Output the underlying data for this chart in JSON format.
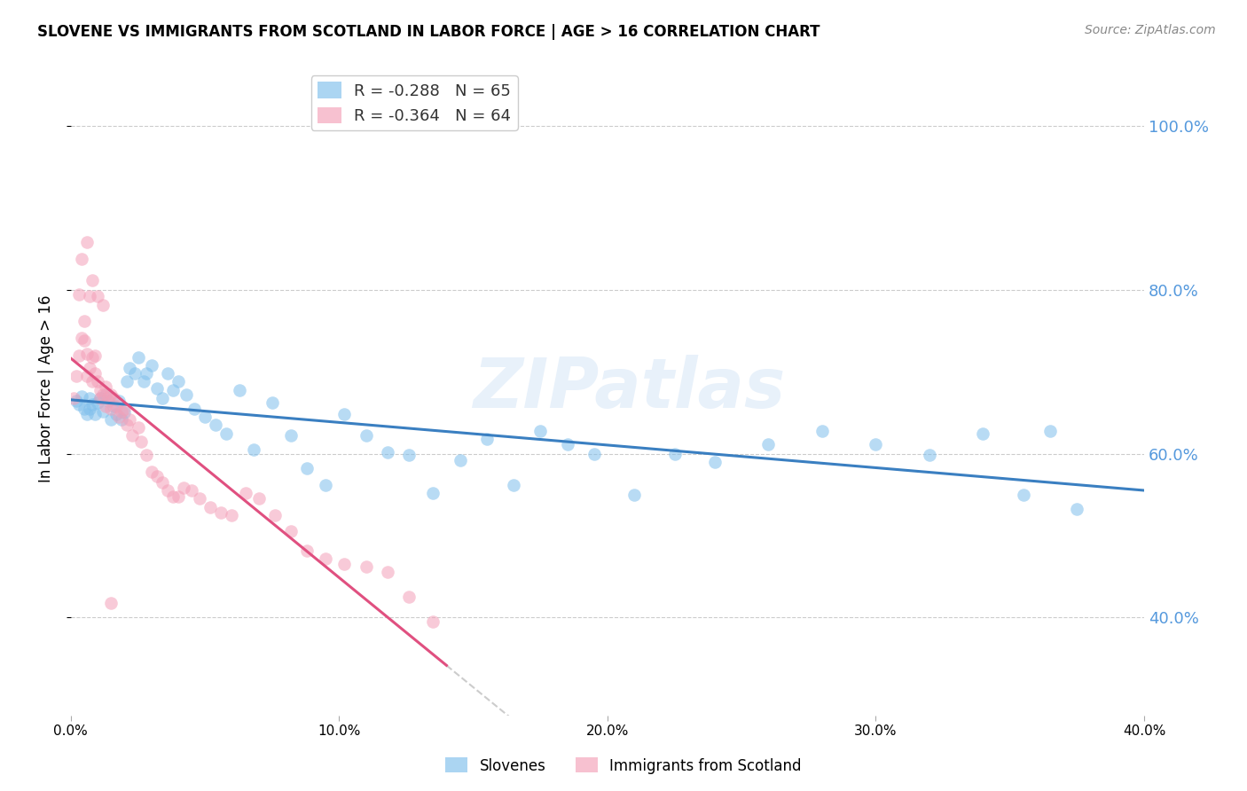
{
  "title": "SLOVENE VS IMMIGRANTS FROM SCOTLAND IN LABOR FORCE | AGE > 16 CORRELATION CHART",
  "source": "Source: ZipAtlas.com",
  "ylabel": "In Labor Force | Age > 16",
  "xlim": [
    0.0,
    0.4
  ],
  "ylim": [
    0.28,
    1.08
  ],
  "ytick_vals": [
    0.4,
    0.6,
    0.8,
    1.0
  ],
  "ytick_labels": [
    "40.0%",
    "60.0%",
    "80.0%",
    "100.0%"
  ],
  "xtick_vals": [
    0.0,
    0.1,
    0.2,
    0.3,
    0.4
  ],
  "xtick_labels": [
    "0.0%",
    "10.0%",
    "20.0%",
    "30.0%",
    "40.0%"
  ],
  "color_blue": "#7fbfec",
  "color_pink": "#f4a0b8",
  "line_blue": "#3a7fc1",
  "line_pink": "#e05080",
  "line_gray": "#cccccc",
  "R_blue": -0.288,
  "N_blue": 65,
  "R_pink": -0.364,
  "N_pink": 64,
  "legend_label_blue": "Slovenes",
  "legend_label_pink": "Immigrants from Scotland",
  "watermark": "ZIPatlas",
  "blue_scatter_x": [
    0.002,
    0.003,
    0.004,
    0.005,
    0.006,
    0.007,
    0.007,
    0.008,
    0.009,
    0.01,
    0.011,
    0.012,
    0.013,
    0.014,
    0.015,
    0.016,
    0.017,
    0.018,
    0.019,
    0.02,
    0.021,
    0.022,
    0.024,
    0.025,
    0.027,
    0.028,
    0.03,
    0.032,
    0.034,
    0.036,
    0.038,
    0.04,
    0.043,
    0.046,
    0.05,
    0.054,
    0.058,
    0.063,
    0.068,
    0.075,
    0.082,
    0.088,
    0.095,
    0.102,
    0.11,
    0.118,
    0.126,
    0.135,
    0.145,
    0.155,
    0.165,
    0.175,
    0.185,
    0.195,
    0.21,
    0.225,
    0.24,
    0.26,
    0.28,
    0.3,
    0.32,
    0.34,
    0.355,
    0.365,
    0.375
  ],
  "blue_scatter_y": [
    0.665,
    0.66,
    0.67,
    0.655,
    0.648,
    0.668,
    0.655,
    0.66,
    0.648,
    0.662,
    0.668,
    0.652,
    0.672,
    0.665,
    0.642,
    0.658,
    0.648,
    0.665,
    0.642,
    0.65,
    0.688,
    0.705,
    0.698,
    0.718,
    0.688,
    0.698,
    0.708,
    0.68,
    0.668,
    0.698,
    0.678,
    0.688,
    0.672,
    0.655,
    0.645,
    0.635,
    0.625,
    0.678,
    0.605,
    0.662,
    0.622,
    0.582,
    0.562,
    0.648,
    0.622,
    0.602,
    0.598,
    0.552,
    0.592,
    0.618,
    0.562,
    0.628,
    0.612,
    0.6,
    0.55,
    0.6,
    0.59,
    0.612,
    0.628,
    0.612,
    0.598,
    0.625,
    0.55,
    0.628,
    0.532
  ],
  "pink_scatter_x": [
    0.001,
    0.002,
    0.003,
    0.004,
    0.005,
    0.006,
    0.006,
    0.007,
    0.008,
    0.008,
    0.009,
    0.01,
    0.011,
    0.011,
    0.012,
    0.013,
    0.013,
    0.014,
    0.015,
    0.015,
    0.016,
    0.017,
    0.018,
    0.019,
    0.02,
    0.021,
    0.022,
    0.023,
    0.025,
    0.026,
    0.028,
    0.03,
    0.032,
    0.034,
    0.036,
    0.038,
    0.04,
    0.042,
    0.045,
    0.048,
    0.052,
    0.056,
    0.06,
    0.065,
    0.07,
    0.076,
    0.082,
    0.088,
    0.095,
    0.102,
    0.11,
    0.118,
    0.126,
    0.135,
    0.004,
    0.006,
    0.008,
    0.01,
    0.012,
    0.005,
    0.007,
    0.009,
    0.003,
    0.015
  ],
  "pink_scatter_y": [
    0.668,
    0.695,
    0.72,
    0.742,
    0.738,
    0.722,
    0.695,
    0.705,
    0.718,
    0.688,
    0.698,
    0.688,
    0.678,
    0.668,
    0.672,
    0.658,
    0.682,
    0.668,
    0.655,
    0.672,
    0.668,
    0.658,
    0.645,
    0.652,
    0.655,
    0.635,
    0.642,
    0.622,
    0.632,
    0.615,
    0.598,
    0.578,
    0.572,
    0.565,
    0.555,
    0.548,
    0.548,
    0.558,
    0.555,
    0.545,
    0.535,
    0.528,
    0.525,
    0.552,
    0.545,
    0.525,
    0.505,
    0.482,
    0.472,
    0.465,
    0.462,
    0.455,
    0.425,
    0.395,
    0.838,
    0.858,
    0.812,
    0.792,
    0.782,
    0.762,
    0.792,
    0.72,
    0.795,
    0.418
  ]
}
